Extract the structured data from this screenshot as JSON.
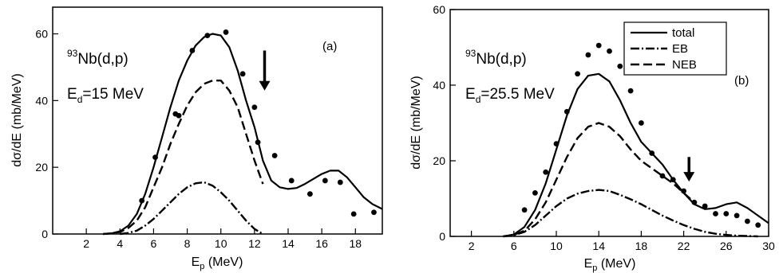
{
  "chart_data": [
    {
      "type": "line",
      "panel_label": "(a)",
      "reaction": {
        "base": "Nb(d,p)",
        "mass_number": "93"
      },
      "beam_energy": {
        "prefix": "E",
        "subscript": "d",
        "value": "=15 MeV"
      },
      "xlabel": {
        "base": "E",
        "subscript": "p",
        "unit": " (MeV)"
      },
      "ylabel": "dσ/dE (mb/MeV)",
      "xlim": [
        0,
        19.6
      ],
      "ylim": [
        0,
        68
      ],
      "xticks": [
        2,
        4,
        6,
        8,
        10,
        12,
        14,
        16,
        18
      ],
      "yticks": [
        0,
        20,
        40,
        60
      ],
      "arrow_at": {
        "x": 12.6,
        "y_top": 55,
        "y_bottom": 43
      },
      "series": [
        {
          "name": "total",
          "style": "solid",
          "x": [
            3,
            3.5,
            4,
            4.5,
            5,
            5.5,
            6,
            6.5,
            7,
            7.5,
            8,
            8.5,
            9,
            9.5,
            10,
            10.5,
            11,
            11.5,
            12,
            12.5,
            13,
            13.5,
            14,
            14.5,
            15,
            15.5,
            16,
            16.5,
            17,
            17.5,
            18,
            18.5,
            19,
            19.6
          ],
          "y": [
            0,
            0.2,
            0.8,
            2.5,
            6,
            12,
            20,
            29,
            38,
            46,
            52,
            56.5,
            59,
            60,
            59.5,
            56,
            49,
            40,
            32,
            22,
            16,
            14,
            13.5,
            13.8,
            15,
            16.5,
            18,
            19,
            19,
            17,
            14,
            11,
            9,
            7.5
          ]
        },
        {
          "name": "NEB",
          "style": "dashed",
          "x": [
            3,
            3.5,
            4,
            4.5,
            5,
            5.5,
            6,
            6.5,
            7,
            7.5,
            8,
            8.5,
            9,
            9.5,
            10,
            10.5,
            11,
            11.5,
            12,
            12.5
          ],
          "y": [
            0,
            0.2,
            0.6,
            1.8,
            4,
            8,
            14,
            20,
            27,
            33,
            38.5,
            42.5,
            45,
            46,
            46,
            43,
            38,
            30,
            22,
            15
          ]
        },
        {
          "name": "EB",
          "style": "dashdot",
          "x": [
            4,
            4.5,
            5,
            5.5,
            6,
            6.5,
            7,
            7.5,
            8,
            8.5,
            9,
            9.5,
            10,
            10.5,
            11,
            11.5,
            12,
            12.5
          ],
          "y": [
            0,
            0.3,
            1,
            2.5,
            4.5,
            7,
            9.5,
            12,
            14,
            15.2,
            15.5,
            14.5,
            12.5,
            10,
            7,
            4,
            1.5,
            0
          ]
        },
        {
          "name": "",
          "style": "points",
          "x": [
            5.3,
            6.1,
            7.3,
            7.5,
            8.3,
            9.2,
            10.3,
            11.3,
            12,
            12.2,
            13.2,
            14.2,
            15.3,
            16.2,
            17.1,
            17.9,
            19.1
          ],
          "y": [
            10,
            23,
            36,
            35.5,
            55,
            59.5,
            60.5,
            48,
            38,
            27.5,
            23.5,
            16,
            12,
            16,
            15.5,
            6,
            6.5
          ]
        }
      ]
    },
    {
      "type": "line",
      "panel_label": "(b)",
      "reaction": {
        "base": "Nb(d,p)",
        "mass_number": "93"
      },
      "beam_energy": {
        "prefix": "E",
        "subscript": "d",
        "value": "=25.5 MeV"
      },
      "xlabel": {
        "base": "E",
        "subscript": "p",
        "unit": " (MeV)"
      },
      "ylabel": "dσ/dE (mb/MeV)",
      "xlim": [
        0,
        30
      ],
      "ylim": [
        0,
        60
      ],
      "xticks": [
        2,
        6,
        10,
        14,
        18,
        22,
        26,
        30
      ],
      "yticks": [
        0,
        20,
        40,
        60
      ],
      "legend": {
        "position": "top-right",
        "entries": [
          "total",
          "EB",
          "NEB"
        ]
      },
      "arrow_at": {
        "x": 22.5,
        "y_top": 21,
        "y_bottom": 14.5
      },
      "series": [
        {
          "name": "total",
          "style": "solid",
          "x": [
            5,
            6,
            7,
            8,
            9,
            10,
            11,
            12,
            13,
            14,
            15,
            16,
            17,
            18,
            19,
            20,
            21,
            22,
            23,
            24,
            25,
            26,
            27,
            28,
            29,
            30
          ],
          "y": [
            0,
            0.5,
            2.5,
            7,
            14,
            23,
            32,
            39,
            42.5,
            43,
            41,
            36,
            30,
            25,
            22,
            19,
            15,
            11.5,
            8.5,
            7.2,
            7.5,
            8.5,
            9,
            7.5,
            5.5,
            3.5
          ]
        },
        {
          "name": "NEB",
          "style": "dashed",
          "x": [
            5,
            6,
            7,
            8,
            9,
            10,
            11,
            12,
            13,
            14,
            15,
            16,
            17,
            18,
            19,
            20,
            21,
            22,
            23
          ],
          "y": [
            0,
            0.4,
            1.5,
            4.5,
            9,
            15,
            21,
            26,
            29,
            30,
            29,
            26.5,
            23,
            20,
            18,
            16,
            14,
            11.5,
            9
          ]
        },
        {
          "name": "EB",
          "style": "dashdot",
          "x": [
            5,
            6,
            7,
            8,
            9,
            10,
            11,
            12,
            13,
            14,
            15,
            16,
            17,
            18,
            19,
            20,
            21,
            22,
            23,
            24,
            25,
            26,
            27,
            28,
            29
          ],
          "y": [
            0,
            0.3,
            1.2,
            3,
            5.5,
            8,
            10,
            11.3,
            12,
            12.3,
            12,
            11,
            9.8,
            8.5,
            7,
            5.5,
            4.2,
            3,
            2,
            1.2,
            0.7,
            0.4,
            0.2,
            0.1,
            0
          ]
        },
        {
          "name": "",
          "style": "points",
          "x": [
            7,
            8,
            9,
            10,
            11,
            12,
            13,
            14,
            15,
            16,
            17,
            18,
            19,
            20,
            21,
            22,
            23,
            24,
            25,
            26,
            27,
            28,
            29
          ],
          "y": [
            7,
            11.5,
            17,
            24.5,
            33,
            43,
            48,
            50.5,
            49,
            45,
            38.5,
            30,
            22,
            16,
            15,
            12,
            9,
            8,
            6,
            6,
            5.5,
            4,
            3
          ]
        }
      ]
    }
  ]
}
